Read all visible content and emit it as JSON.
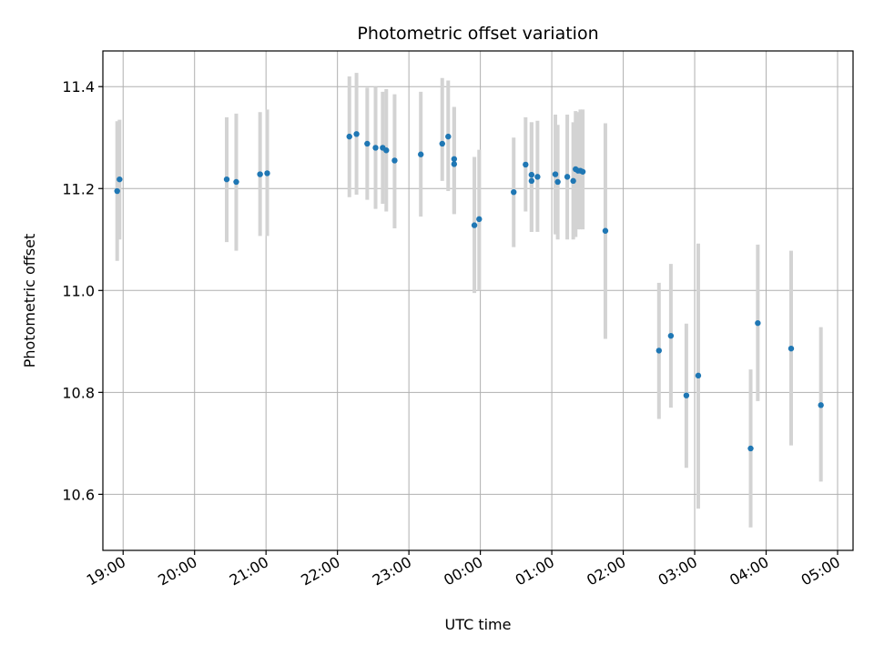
{
  "chart_data": {
    "type": "scatter",
    "title": "Photometric offset variation",
    "xlabel": "UTC time",
    "ylabel": "Photometric offset",
    "x_tick_labels": [
      "19:00",
      "20:00",
      "21:00",
      "22:00",
      "23:00",
      "00:00",
      "01:00",
      "02:00",
      "03:00",
      "04:00",
      "05:00"
    ],
    "y_tick_labels": [
      "10.6",
      "10.8",
      "11.0",
      "11.2",
      "11.4"
    ],
    "y_ticks": [
      10.6,
      10.8,
      11.0,
      11.2,
      11.4
    ],
    "xlim": [
      "18:43",
      "05:13"
    ],
    "ylim": [
      10.49,
      11.47
    ],
    "grid": true,
    "marker_color": "#1f77b4",
    "errorbar_color": "#d3d3d3",
    "series": [
      {
        "x": [
          "18:55",
          "18:57",
          "20:27",
          "20:35",
          "20:55",
          "21:01",
          "22:10",
          "22:16",
          "22:25",
          "22:32",
          "22:38",
          "22:41",
          "22:48",
          "23:10",
          "23:28",
          "23:33",
          "23:38",
          "23:38",
          "23:55",
          "23:59",
          "00:28",
          "00:38",
          "00:43",
          "00:43",
          "00:48",
          "01:03",
          "01:05",
          "01:13",
          "01:18",
          "01:20",
          "01:22",
          "01:24",
          "01:26",
          "01:45",
          "02:30",
          "02:40",
          "02:53",
          "03:03",
          "03:47",
          "03:53",
          "04:21",
          "04:46"
        ],
        "y": [
          11.195,
          11.218,
          11.218,
          11.213,
          11.228,
          11.23,
          11.302,
          11.307,
          11.288,
          11.28,
          11.28,
          11.275,
          11.255,
          11.267,
          11.288,
          11.302,
          11.258,
          11.248,
          11.128,
          11.14,
          11.193,
          11.247,
          11.227,
          11.215,
          11.223,
          11.228,
          11.213,
          11.223,
          11.215,
          11.238,
          11.235,
          11.235,
          11.233,
          11.117,
          10.882,
          10.911,
          10.794,
          10.833,
          10.69,
          10.936,
          10.886,
          10.775
        ],
        "err_lo": [
          11.058,
          11.1,
          11.095,
          11.078,
          11.107,
          11.107,
          11.183,
          11.188,
          11.178,
          11.16,
          11.17,
          11.155,
          11.122,
          11.145,
          11.215,
          11.195,
          11.15,
          11.15,
          10.995,
          11.0,
          11.085,
          11.155,
          11.115,
          11.115,
          11.115,
          11.11,
          11.1,
          11.1,
          11.1,
          11.105,
          11.12,
          11.12,
          11.12,
          10.905,
          10.748,
          10.77,
          10.652,
          10.572,
          10.535,
          10.783,
          10.696,
          10.625
        ],
        "err_hi": [
          11.332,
          11.335,
          11.34,
          11.347,
          11.35,
          11.355,
          11.42,
          11.427,
          11.398,
          11.4,
          11.39,
          11.395,
          11.385,
          11.39,
          11.417,
          11.412,
          11.36,
          11.36,
          11.262,
          11.276,
          11.3,
          11.34,
          11.33,
          11.33,
          11.333,
          11.345,
          11.325,
          11.345,
          11.33,
          11.352,
          11.35,
          11.355,
          11.355,
          11.328,
          11.015,
          11.052,
          10.935,
          11.092,
          10.845,
          11.09,
          11.078,
          10.928
        ]
      }
    ]
  }
}
